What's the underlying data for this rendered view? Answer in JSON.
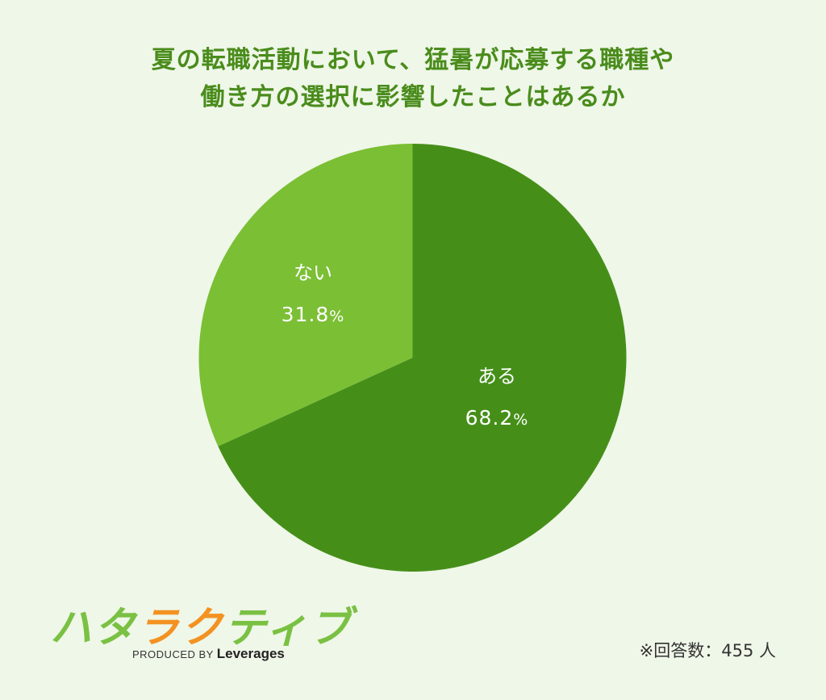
{
  "title": {
    "line1": "夏の転職活動において、猛暑が応募する職種や",
    "line2": "働き方の選択に影響したことはあるか"
  },
  "chart_data": {
    "type": "pie",
    "title": "夏の転職活動において、猛暑が応募する職種や働き方の選択に影響したことはあるか",
    "categories": [
      "ある",
      "ない"
    ],
    "values": [
      68.2,
      31.8
    ],
    "unit": "%",
    "colors": [
      "#458f19",
      "#7bbf35"
    ],
    "start_angle": "12 o'clock, clockwise",
    "legend": "none (labels inside slices)",
    "n_respondents": 455
  },
  "labels": {
    "aru": {
      "name": "ある",
      "value": "68.2",
      "unit": "%"
    },
    "nai": {
      "name": "ない",
      "value": "31.8",
      "unit": "%"
    }
  },
  "logo": {
    "parts": [
      "ハタ",
      "ラク",
      "ティブ"
    ],
    "produced_by": "PRODUCED BY",
    "brand": "Leverages"
  },
  "footnote": "※回答数：455 人",
  "colors": {
    "background": "#eff7e8",
    "title": "#4a8c1c",
    "slice_dark": "#458f19",
    "slice_light": "#7bbf35",
    "logo_green": "#7ac143",
    "logo_orange": "#f39222"
  }
}
